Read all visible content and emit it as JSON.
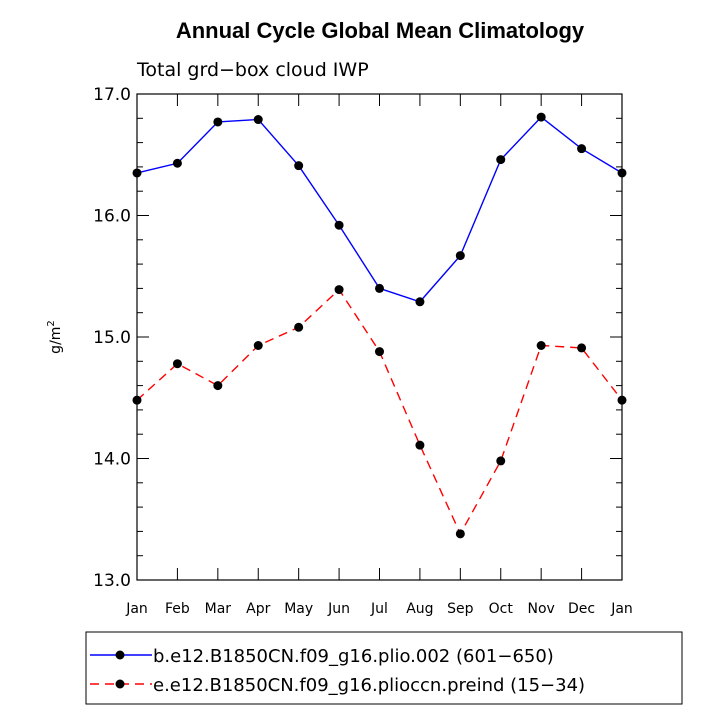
{
  "chart_data": {
    "type": "line",
    "title": "Annual Cycle Global Mean Climatology",
    "subtitle": "Total grd−box cloud IWP",
    "xlabel": "",
    "ylabel": "g/m",
    "ylabel_superscript": "2",
    "ylim": [
      13.0,
      17.0
    ],
    "yticks": [
      "13.0",
      "14.0",
      "15.0",
      "16.0",
      "17.0"
    ],
    "categories": [
      "Jan",
      "Feb",
      "Mar",
      "Apr",
      "May",
      "Jun",
      "Jul",
      "Aug",
      "Sep",
      "Oct",
      "Nov",
      "Dec",
      "Jan"
    ],
    "grid": false,
    "legend_position": "bottom",
    "series": [
      {
        "name": "b.e12.B1850CN.f09_g16.plio.002 (601−650)",
        "color": "#0000ff",
        "dash": "solid",
        "values": [
          16.35,
          16.43,
          16.77,
          16.79,
          16.41,
          15.92,
          15.4,
          15.29,
          15.67,
          16.46,
          16.81,
          16.55,
          16.35
        ]
      },
      {
        "name": "e.e12.B1850CN.f09_g16.plioccn.preind (15−34)",
        "color": "#ff0000",
        "dash": "dashed",
        "values": [
          14.48,
          14.78,
          14.6,
          14.93,
          15.08,
          15.39,
          14.88,
          14.11,
          13.38,
          13.98,
          14.93,
          14.91,
          14.48
        ]
      }
    ]
  }
}
